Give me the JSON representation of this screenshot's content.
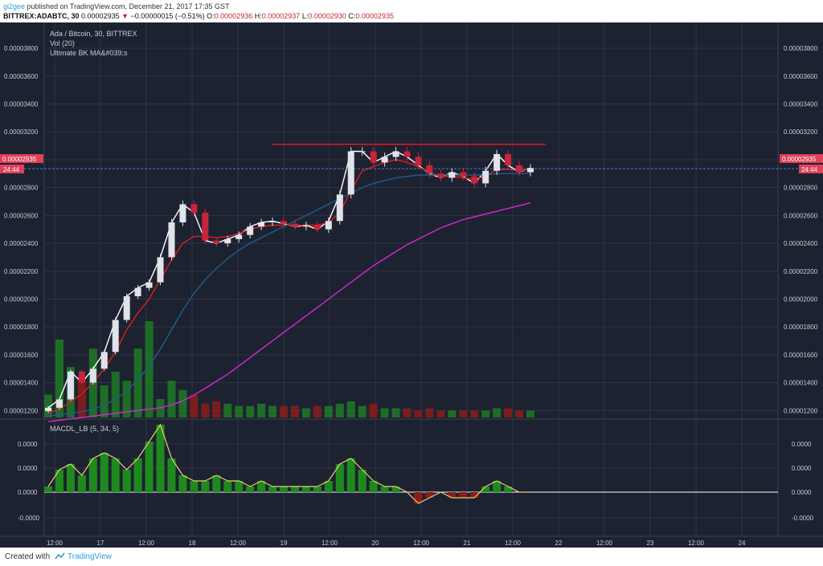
{
  "header": {
    "user": "gi2gee",
    "published_text": "published on TradingView.com, December 21, 2017 17:35 GST",
    "symbol": "BITTREX:ADABTC, 30",
    "last": "0.00002935",
    "change": "−0.00000015 (−0.51%)",
    "o_label": "O:",
    "o": "0.00002936",
    "h_label": "H:",
    "h": "0.00002937",
    "l_label": "L:",
    "l": "0.00002930",
    "c_label": "C:",
    "c": "0.00002935"
  },
  "legend": {
    "title": "Ada / Bitcoin, 30, BITTREX",
    "vol": "Vol (20)",
    "ma": "Ultimate BK MA&#039;s"
  },
  "macd_label": "MACDL_LB (5, 34, 5)",
  "price_badge": {
    "price": "0.00002935",
    "timer": "24:44"
  },
  "footer": {
    "created_with": "Created with",
    "brand": "TradingView"
  },
  "colors": {
    "background": "#1d2231",
    "grid": "#2e3446",
    "up_candle": "#e0e3ea",
    "down_candle": "#c8243a",
    "ma_fast": "#ffffff",
    "ma_red": "#e01b1b",
    "ma_blue": "#1f5c8c",
    "ma_magenta": "#d428d4",
    "volume": "#1e7a25",
    "volume_down": "#8b1c1c",
    "volume_ma": "#d4a04a",
    "macd_pos": "#1e8a1e",
    "macd_neg": "#8b1c1c",
    "macd_signal": "#e8d070",
    "resistance": "#e01b1b",
    "last_price_line": "#4a7bd6",
    "price_badge": "#e0405a"
  },
  "chart_data": {
    "type": "line",
    "title": "Ada / Bitcoin, 30, BITTREX",
    "price_axis_ticks": [
      "0.00003800",
      "0.00003600",
      "0.00003400",
      "0.00003200",
      "0.00003000",
      "0.00002800",
      "0.00002600",
      "0.00002400",
      "0.00002200",
      "0.00002000",
      "0.00001800",
      "0.00001600",
      "0.00001400",
      "0.00001200"
    ],
    "price_axis_values": [
      3.8e-05,
      3.6e-05,
      3.4e-05,
      3.2e-05,
      3e-05,
      2.8e-05,
      2.6e-05,
      2.4e-05,
      2.2e-05,
      2e-05,
      1.8e-05,
      1.6e-05,
      1.4e-05,
      1.2e-05
    ],
    "ylim": [
      1.15e-05,
      3.95e-05
    ],
    "time_axis_ticks": [
      "12:00",
      "17",
      "12:00",
      "18",
      "12:00",
      "19",
      "12:00",
      "20",
      "12:00",
      "21",
      "12:00",
      "22",
      "12:00",
      "23",
      "12:00",
      "24"
    ],
    "macd_axis_ticks": [
      "0.0000",
      "0.0000",
      "0.0000",
      "-0.0000"
    ],
    "last_price": 2.935e-05,
    "resistance": {
      "from_index": 20,
      "to_index": 39,
      "value": 3.11e-05
    },
    "price_series": [
      {
        "name": "close",
        "values": [
          1.22e-05,
          1.28e-05,
          1.48e-05,
          1.4e-05,
          1.5e-05,
          1.62e-05,
          1.85e-05,
          2.02e-05,
          2.08e-05,
          2.12e-05,
          2.3e-05,
          2.55e-05,
          2.68e-05,
          2.62e-05,
          2.42e-05,
          2.4e-05,
          2.43e-05,
          2.46e-05,
          2.52e-05,
          2.55e-05,
          2.56e-05,
          2.54e-05,
          2.52e-05,
          2.53e-05,
          2.5e-05,
          2.56e-05,
          2.75e-05,
          3.06e-05,
          3.06e-05,
          2.98e-05,
          3.02e-05,
          3.06e-05,
          3.02e-05,
          2.96e-05,
          2.9e-05,
          2.87e-05,
          2.91e-05,
          2.88e-05,
          2.83e-05,
          2.92e-05,
          3.04e-05,
          2.96e-05,
          2.91e-05,
          2.94e-05
        ]
      },
      {
        "name": "ma_red",
        "values": [
          1.18e-05,
          1.21e-05,
          1.26e-05,
          1.32e-05,
          1.4e-05,
          1.5e-05,
          1.62e-05,
          1.78e-05,
          1.9e-05,
          2e-05,
          2.14e-05,
          2.28e-05,
          2.4e-05,
          2.45e-05,
          2.45e-05,
          2.44e-05,
          2.45e-05,
          2.47e-05,
          2.5e-05,
          2.52e-05,
          2.53e-05,
          2.53e-05,
          2.53e-05,
          2.53e-05,
          2.53e-05,
          2.55e-05,
          2.62e-05,
          2.78e-05,
          2.92e-05,
          2.95e-05,
          2.98e-05,
          3e-05,
          2.98e-05,
          2.95e-05,
          2.91e-05,
          2.88e-05,
          2.88e-05,
          2.87e-05,
          2.86e-05,
          2.88e-05,
          2.93e-05,
          2.93e-05,
          2.92e-05,
          2.93e-05
        ]
      },
      {
        "name": "ma_blue",
        "values": [
          1.16e-05,
          1.17e-05,
          1.18e-05,
          1.19e-05,
          1.21e-05,
          1.24e-05,
          1.28e-05,
          1.34e-05,
          1.42e-05,
          1.52e-05,
          1.64e-05,
          1.78e-05,
          1.92e-05,
          2.04e-05,
          2.14e-05,
          2.22e-05,
          2.29e-05,
          2.35e-05,
          2.4e-05,
          2.44e-05,
          2.48e-05,
          2.52e-05,
          2.56e-05,
          2.6e-05,
          2.64e-05,
          2.68e-05,
          2.72e-05,
          2.76e-05,
          2.8e-05,
          2.83e-05,
          2.85e-05,
          2.87e-05,
          2.88e-05,
          2.89e-05,
          2.89e-05,
          2.89e-05,
          2.89e-05,
          2.89e-05,
          2.89e-05,
          2.89e-05,
          2.9e-05,
          2.9e-05,
          2.9e-05,
          2.9e-05
        ]
      },
      {
        "name": "ma_magenta",
        "values": [
          1.12e-05,
          1.13e-05,
          1.14e-05,
          1.15e-05,
          1.16e-05,
          1.17e-05,
          1.18e-05,
          1.19e-05,
          1.2e-05,
          1.21e-05,
          1.22e-05,
          1.24e-05,
          1.27e-05,
          1.31e-05,
          1.36e-05,
          1.41e-05,
          1.46e-05,
          1.52e-05,
          1.58e-05,
          1.64e-05,
          1.7e-05,
          1.76e-05,
          1.82e-05,
          1.88e-05,
          1.94e-05,
          2e-05,
          2.06e-05,
          2.12e-05,
          2.18e-05,
          2.24e-05,
          2.29e-05,
          2.34e-05,
          2.39e-05,
          2.43e-05,
          2.47e-05,
          2.51e-05,
          2.54e-05,
          2.57e-05,
          2.59e-05,
          2.61e-05,
          2.63e-05,
          2.65e-05,
          2.67e-05,
          2.69e-05
        ]
      }
    ],
    "volume": [
      10,
      34,
      22,
      18,
      30,
      14,
      20,
      16,
      30,
      42,
      8,
      16,
      12,
      10,
      6,
      7,
      6,
      5,
      5,
      6,
      5,
      5,
      5,
      4,
      5,
      5,
      6,
      7,
      5,
      6,
      4,
      4,
      4,
      3,
      4,
      3,
      3,
      3,
      3,
      3,
      4,
      4,
      3,
      3
    ],
    "macd": [
      1,
      4,
      5,
      3,
      6,
      7,
      6,
      4,
      6,
      9,
      12,
      6,
      3,
      2,
      2,
      3,
      2,
      2,
      1,
      2,
      1,
      1,
      1,
      1,
      1,
      2,
      5,
      6,
      4,
      2,
      1,
      1,
      0,
      -2,
      -1,
      0,
      -1,
      -1,
      -1,
      1,
      2,
      1,
      0,
      0
    ]
  }
}
